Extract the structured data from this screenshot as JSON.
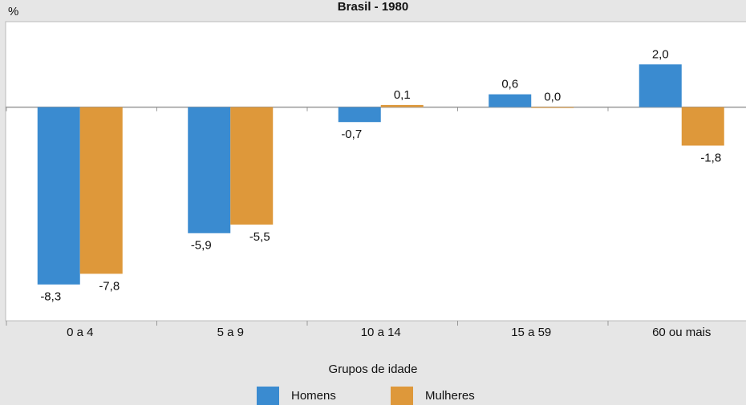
{
  "chart_data": {
    "type": "bar",
    "title": "Brasil - 1980",
    "y_label": "%",
    "x_label": "Grupos de idade",
    "categories": [
      "0 a 4",
      "5 a 9",
      "10 a 14",
      "15 a 59",
      "60 ou mais"
    ],
    "series": [
      {
        "name": "Homens",
        "color": "#3a8bd0",
        "values": [
          -8.3,
          -5.9,
          -0.7,
          0.6,
          2.0
        ],
        "value_labels": [
          "-8,3",
          "-5,9",
          "-0,7",
          "0,6",
          "2,0"
        ]
      },
      {
        "name": "Mulheres",
        "color": "#de983a",
        "values": [
          -7.8,
          -5.5,
          0.1,
          0.0,
          -1.8
        ],
        "value_labels": [
          "-7,8",
          "-5,5",
          "0,1",
          "0,0",
          "-1,8"
        ]
      }
    ],
    "ylim": [
      -10,
      4
    ]
  }
}
